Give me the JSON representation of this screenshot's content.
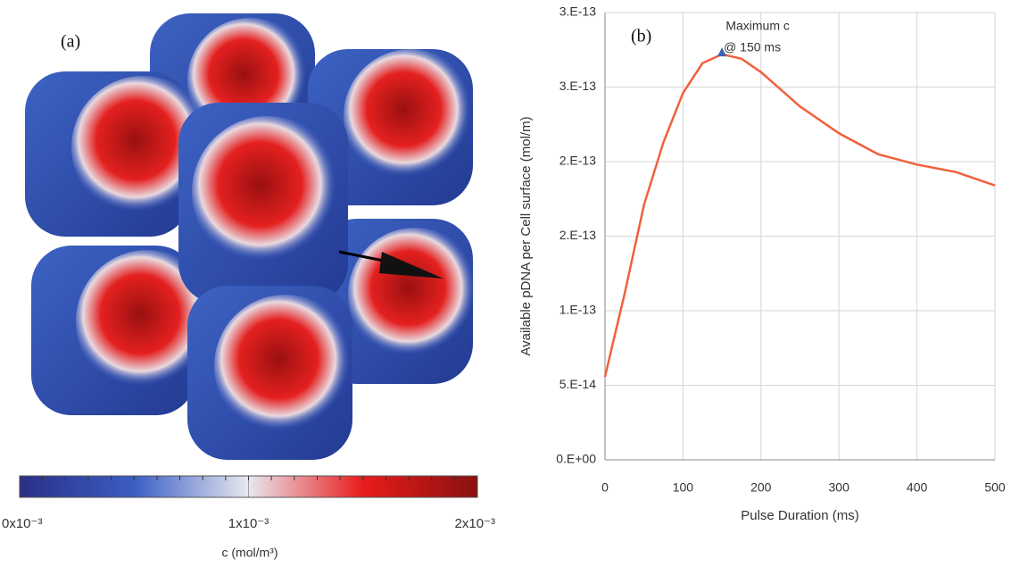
{
  "chart_data": [
    {
      "type": "image",
      "panel_label": "(a)",
      "colorbar": {
        "title": "c (mol/m³)",
        "clim": [
          0,
          0.002
        ],
        "colors": [
          "#2b2f86",
          "#3a5ec4",
          "#e8e8ef",
          "#e81c1c",
          "#8a1010"
        ],
        "ticks": [
          {
            "value": 0,
            "label": "0x10⁻³"
          },
          {
            "value": 0.001,
            "label": "1x10⁻³"
          },
          {
            "value": 0.002,
            "label": "2x10⁻³"
          }
        ]
      }
    },
    {
      "type": "line",
      "panel_label": "(b)",
      "xlabel": "Pulse Duration (ms)",
      "ylabel": "Available pDNA per Cell surface (mol/m)",
      "xlim": [
        0,
        500
      ],
      "xticks": [
        0,
        100,
        200,
        300,
        400,
        500
      ],
      "ylim": [
        0,
        3e-13
      ],
      "yticks": [
        {
          "value": 0,
          "label": "0.E+00"
        },
        {
          "value": 5e-14,
          "label": "5.E-14"
        },
        {
          "value": 1e-13,
          "label": "1.E-13"
        },
        {
          "value": 1.5e-13,
          "label": "2.E-13"
        },
        {
          "value": 2e-13,
          "label": "2.E-13"
        },
        {
          "value": 2.5e-13,
          "label": "3.E-13"
        },
        {
          "value": 3e-13,
          "label": "3.E-13"
        }
      ],
      "grid": true,
      "x": [
        0,
        10,
        25,
        50,
        75,
        100,
        125,
        150,
        175,
        200,
        250,
        300,
        350,
        400,
        450,
        500
      ],
      "series": [
        {
          "color": "#f0603c",
          "values": [
            5.57e-14,
            7.8e-14,
            1.11e-13,
            1.71e-13,
            2.13e-13,
            2.46e-13,
            2.66e-13,
            2.72e-13,
            2.69e-13,
            2.6e-13,
            2.37e-13,
            2.19e-13,
            2.05e-13,
            1.98e-13,
            1.93e-13,
            1.84e-13
          ]
        }
      ],
      "annotations": [
        {
          "text": [
            "Maximum c",
            "@ 150 ms"
          ],
          "x": 150,
          "y": 2.73e-13,
          "color": "#3a62b0"
        }
      ]
    }
  ]
}
